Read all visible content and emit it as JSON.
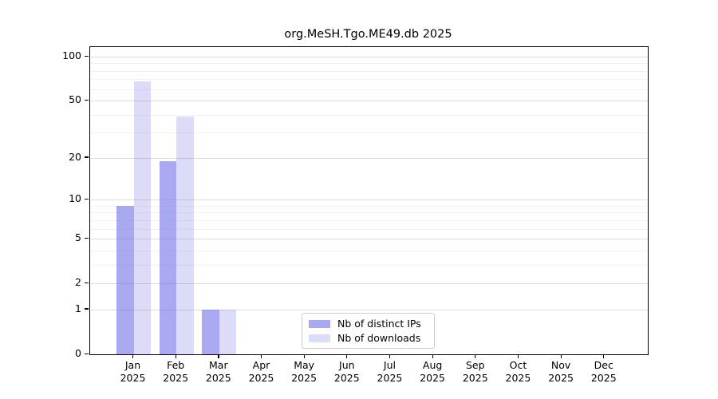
{
  "figure": {
    "title": "org.MeSH.Tgo.ME49.db 2025"
  },
  "legend": {
    "items": [
      {
        "label": "Nb of distinct IPs",
        "color": "#a9a9f2"
      },
      {
        "label": "Nb of downloads",
        "color": "#dcdcf8"
      }
    ]
  },
  "chart_data": {
    "type": "bar",
    "title": "org.MeSH.Tgo.ME49.db 2025",
    "categories": [
      "Jan",
      "Feb",
      "Mar",
      "Apr",
      "May",
      "Jun",
      "Jul",
      "Aug",
      "Sep",
      "Oct",
      "Nov",
      "Dec"
    ],
    "x_year_label": "2025",
    "series": [
      {
        "name": "Nb of distinct IPs",
        "color": "#a9a9f2",
        "values": [
          9,
          19,
          1,
          0,
          0,
          0,
          0,
          0,
          0,
          0,
          0,
          0
        ]
      },
      {
        "name": "Nb of downloads",
        "color": "#dcdcf8",
        "values": [
          68,
          39,
          1,
          0,
          0,
          0,
          0,
          0,
          0,
          0,
          0,
          0
        ]
      }
    ],
    "yscale": "log1p",
    "yticks": [
      0,
      1,
      2,
      5,
      10,
      20,
      50,
      100
    ],
    "minor_yticks": [
      3,
      4,
      6,
      7,
      8,
      9,
      30,
      40,
      60,
      70,
      80,
      90
    ],
    "ylim": [
      0,
      114
    ],
    "grid": true,
    "grid_over_bars": true,
    "legend_position": "bottom-center",
    "colors": {
      "major_grid": "#d9d9d9",
      "minor_grid": "#ececec",
      "spine": "#000000",
      "background": "#ffffff"
    }
  }
}
